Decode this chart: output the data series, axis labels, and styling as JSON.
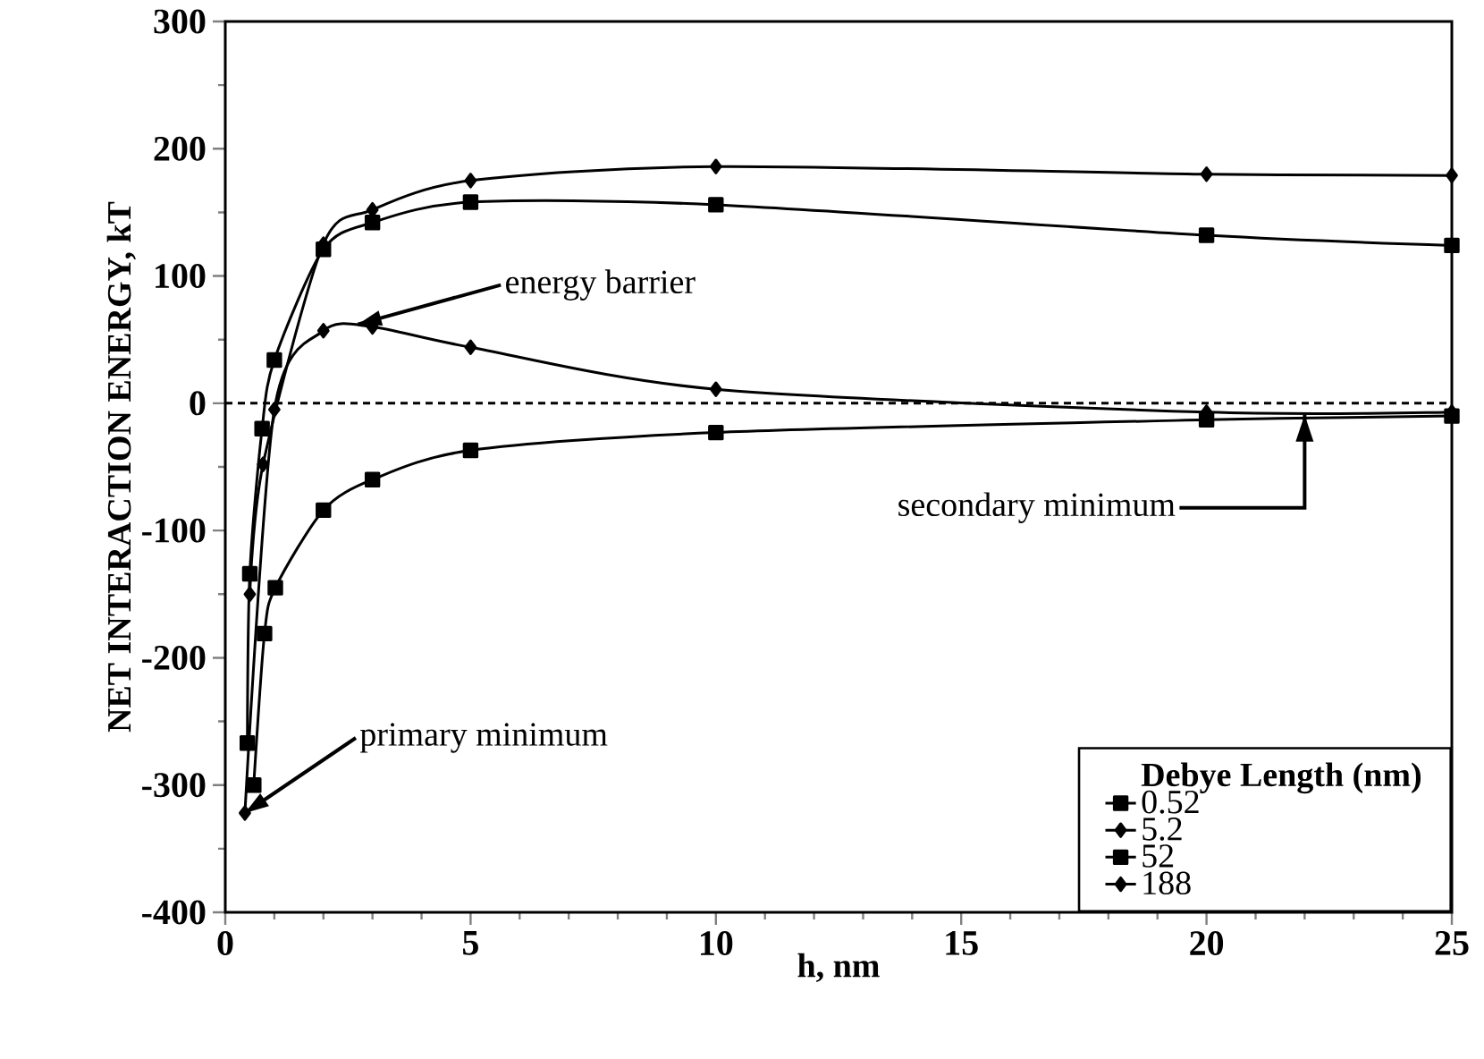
{
  "chart_data": {
    "type": "line",
    "xlabel": "h, nm",
    "ylabel": "NET INTERACTION ENERGY, kT",
    "legend_title": "Debye Length (nm)",
    "xlim": [
      0,
      25
    ],
    "ylim": [
      -400,
      300
    ],
    "xticks": [
      0,
      5,
      10,
      15,
      20,
      25
    ],
    "yticks": [
      -400,
      -300,
      -200,
      -100,
      0,
      100,
      200,
      300
    ],
    "legend": "bottom right",
    "grid": false,
    "series": [
      {
        "name": "0.52",
        "color": "#000000",
        "marker": "square",
        "x": [
          0.58,
          0.8,
          1.02,
          2,
          3,
          5,
          10,
          20,
          25
        ],
        "values": [
          -300,
          -181,
          -145,
          -84,
          -60,
          -37,
          -23,
          -13,
          -10
        ]
      },
      {
        "name": "5.2",
        "color": "#000000",
        "marker": "diamond",
        "x": [
          0.4,
          1.0,
          2,
          3,
          5,
          10,
          20,
          25
        ],
        "values": [
          -322,
          -5,
          57,
          60,
          44,
          11,
          -7,
          -7
        ]
      },
      {
        "name": "52",
        "color": "#000000",
        "marker": "square",
        "x": [
          0.45,
          0.5,
          0.75,
          1.0,
          2,
          3,
          5,
          10,
          20,
          25
        ],
        "values": [
          -267,
          -134,
          -20,
          34,
          121,
          142,
          158,
          156,
          132,
          124
        ]
      },
      {
        "name": "188",
        "color": "#000000",
        "marker": "diamond",
        "x": [
          0.5,
          0.77,
          2,
          3,
          5,
          10,
          20,
          25
        ],
        "values": [
          -150,
          -48,
          125,
          152,
          175,
          186,
          180,
          179
        ]
      }
    ],
    "ref_lines": [
      {
        "axis": "y",
        "value": 0,
        "line_style": "dashed"
      }
    ],
    "annotations": [
      {
        "text": "energy barrier",
        "x": 2.7,
        "y": 62
      },
      {
        "text": "primary minimum",
        "x": 0.4,
        "y": -322
      },
      {
        "text": "secondary minimum",
        "x": 22,
        "y": -9
      }
    ]
  }
}
